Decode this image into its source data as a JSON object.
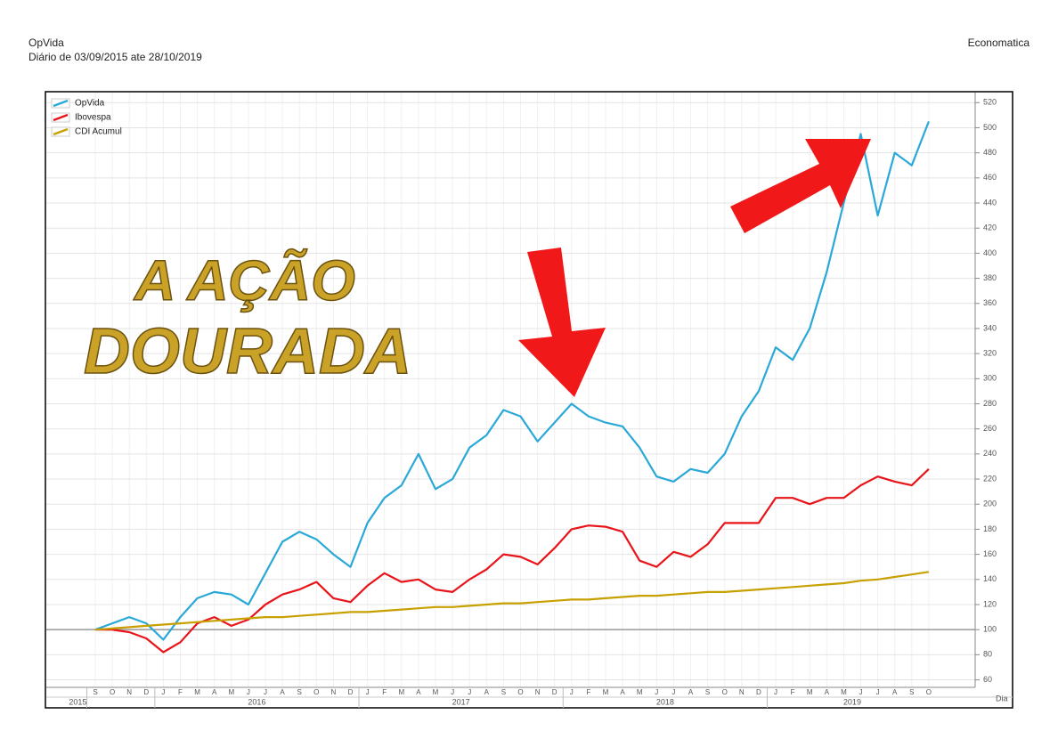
{
  "chart_data": {
    "type": "line",
    "title": "OpVida",
    "subtitle": "Diário de 03/09/2015 ate 28/10/2019",
    "source": "Economatica",
    "watermark": [
      "A AÇÃO",
      "DOURADA"
    ],
    "x_label": "Dia",
    "categories": [
      "S",
      "O",
      "N",
      "D",
      "J",
      "F",
      "M",
      "A",
      "M",
      "J",
      "J",
      "A",
      "S",
      "O",
      "N",
      "D",
      "J",
      "F",
      "M",
      "A",
      "M",
      "J",
      "J",
      "A",
      "S",
      "O",
      "N",
      "D",
      "J",
      "F",
      "M",
      "A",
      "M",
      "J",
      "J",
      "A",
      "S",
      "O",
      "N",
      "D",
      "J",
      "F",
      "M",
      "A",
      "M",
      "J",
      "J",
      "A",
      "S",
      "O"
    ],
    "years": [
      "2015",
      "2016",
      "2017",
      "2018",
      "2019"
    ],
    "year_starts": [
      0,
      4,
      16,
      28,
      40
    ],
    "series": [
      {
        "name": "OpVida",
        "color": "#2aa8d8",
        "values": [
          100,
          105,
          110,
          105,
          92,
          110,
          125,
          130,
          128,
          120,
          145,
          170,
          178,
          172,
          160,
          150,
          185,
          205,
          215,
          240,
          212,
          220,
          245,
          255,
          275,
          270,
          250,
          265,
          280,
          270,
          265,
          262,
          245,
          222,
          218,
          228,
          225,
          240,
          270,
          290,
          325,
          315,
          340,
          385,
          440,
          495,
          430,
          480,
          470,
          505
        ]
      },
      {
        "name": "Ibovespa",
        "color": "#e8141a",
        "values": [
          100,
          100,
          98,
          93,
          82,
          90,
          105,
          110,
          103,
          108,
          120,
          128,
          132,
          138,
          125,
          122,
          135,
          145,
          138,
          140,
          132,
          130,
          140,
          148,
          160,
          158,
          152,
          165,
          180,
          183,
          182,
          178,
          155,
          150,
          162,
          158,
          168,
          185,
          185,
          185,
          205,
          205,
          200,
          205,
          205,
          215,
          222,
          218,
          215,
          228
        ]
      },
      {
        "name": "CDI Acumul",
        "color": "#c8a000",
        "values": [
          100,
          101,
          102,
          103,
          104,
          105,
          106,
          107,
          108,
          109,
          110,
          110,
          111,
          112,
          113,
          114,
          114,
          115,
          116,
          117,
          118,
          118,
          119,
          120,
          121,
          121,
          122,
          123,
          124,
          124,
          125,
          126,
          127,
          127,
          128,
          129,
          130,
          130,
          131,
          132,
          133,
          134,
          135,
          136,
          137,
          139,
          140,
          142,
          144,
          146
        ]
      }
    ],
    "reference_line": 100,
    "ylim": [
      54,
      528
    ],
    "yticks": [
      60,
      80,
      100,
      120,
      140,
      160,
      180,
      200,
      220,
      240,
      260,
      280,
      300,
      320,
      340,
      360,
      380,
      400,
      420,
      440,
      460,
      480,
      500,
      520
    ],
    "grid": true,
    "legend": "top-left"
  }
}
